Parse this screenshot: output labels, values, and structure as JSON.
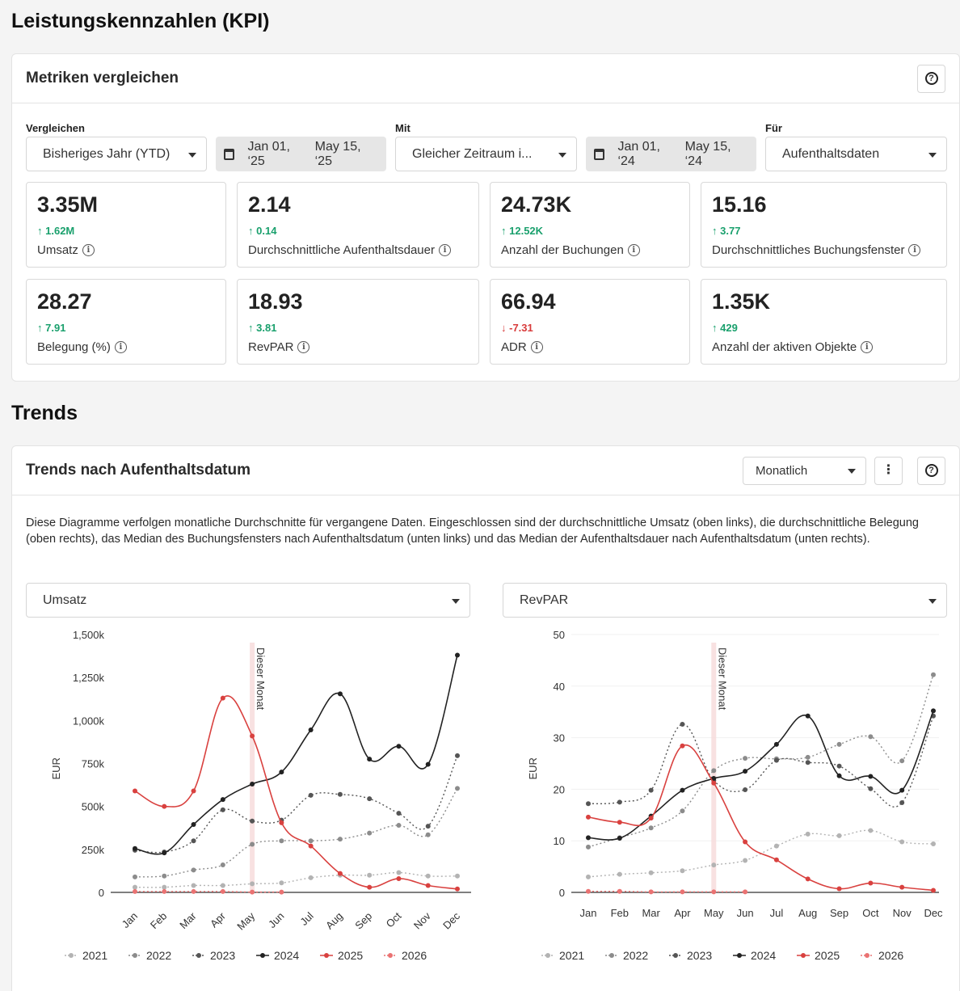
{
  "page_title": "Leistungskennzahlen (KPI)",
  "kpi": {
    "title": "Metriken vergleichen",
    "help_icon": "question-icon",
    "compare_label": "Vergleichen",
    "compare_value": "Bisheriges Jahr (YTD)",
    "compare_range_start": "Jan 01, ‘25",
    "compare_range_end": "May 15, ‘25",
    "with_label": "Mit",
    "with_value": "Gleicher Zeitraum i...",
    "with_range_start": "Jan 01, ‘24",
    "with_range_end": "May 15, ‘24",
    "for_label": "Für",
    "for_value": "Aufenthaltsdaten",
    "metrics": [
      {
        "value": "3.35M",
        "delta": "1.62M",
        "dir": "up",
        "label": "Umsatz"
      },
      {
        "value": "2.14",
        "delta": "0.14",
        "dir": "up",
        "label": "Durchschnittliche Aufenthaltsdauer"
      },
      {
        "value": "24.73K",
        "delta": "12.52K",
        "dir": "up",
        "label": "Anzahl der Buchungen"
      },
      {
        "value": "15.16",
        "delta": "3.77",
        "dir": "up",
        "label": "Durchschnittliches Buchungsfenster"
      },
      {
        "value": "28.27",
        "delta": "7.91",
        "dir": "up",
        "label": "Belegung (%)"
      },
      {
        "value": "18.93",
        "delta": "3.81",
        "dir": "up",
        "label": "RevPAR"
      },
      {
        "value": "66.94",
        "delta": "-7.31",
        "dir": "down",
        "label": "ADR"
      },
      {
        "value": "1.35K",
        "delta": "429",
        "dir": "up",
        "label": "Anzahl der aktiven Objekte"
      }
    ]
  },
  "trends_title": "Trends",
  "trend_card": {
    "title": "Trends nach Aufenthaltsdatum",
    "period_value": "Monatlich",
    "menu_icon": "kebab-menu-icon",
    "help_icon": "question-icon",
    "description": "Diese Diagramme verfolgen monatliche Durchschnitte für vergangene Daten. Eingeschlossen sind der durchschnittliche Umsatz (oben links), die durchschnittliche Belegung (oben rechts), das Median des Buchungsfensters nach Aufenthaltsdatum (unten links) und das Median der Aufenthaltsdauer nach Aufenthaltsdatum (unten rechts).",
    "left_select": "Umsatz",
    "right_select": "RevPAR"
  },
  "colors": {
    "y2021": "#b3b3b3",
    "y2022": "#8c8c8c",
    "y2023": "#555555",
    "y2024": "#222222",
    "y2025": "#d9413f",
    "y2026": "#ea7272",
    "marker": "#f6dada"
  },
  "chart_data": [
    {
      "type": "line",
      "title": "Umsatz",
      "ylabel": "EUR",
      "ylim": [
        0,
        1500000
      ],
      "yticks": [
        "0",
        "250k",
        "500k",
        "750k",
        "1,000k",
        "1,250k",
        "1,500k"
      ],
      "categories": [
        "Jan",
        "Feb",
        "Mar",
        "Apr",
        "May",
        "Jun",
        "Jul",
        "Aug",
        "Sep",
        "Oct",
        "Nov",
        "Dec"
      ],
      "marker_label": "Dieser Monat",
      "marker_index": 4,
      "series": [
        {
          "name": "2021",
          "style": "dotted",
          "values": [
            30000,
            30000,
            40000,
            40000,
            50000,
            55000,
            85000,
            100000,
            100000,
            115000,
            95000,
            95000
          ]
        },
        {
          "name": "2022",
          "style": "dotted",
          "values": [
            90000,
            95000,
            130000,
            160000,
            280000,
            300000,
            300000,
            310000,
            345000,
            390000,
            335000,
            605000
          ]
        },
        {
          "name": "2023",
          "style": "dotted",
          "values": [
            245000,
            235000,
            300000,
            480000,
            415000,
            420000,
            565000,
            570000,
            545000,
            460000,
            385000,
            795000
          ]
        },
        {
          "name": "2024",
          "style": "solid",
          "values": [
            255000,
            230000,
            395000,
            540000,
            630000,
            700000,
            945000,
            1155000,
            775000,
            850000,
            745000,
            1380000
          ]
        },
        {
          "name": "2025",
          "style": "solid",
          "values": [
            590000,
            500000,
            590000,
            1130000,
            910000,
            405000,
            270000,
            110000,
            30000,
            80000,
            40000,
            20000
          ]
        },
        {
          "name": "2026",
          "style": "dotted",
          "values": [
            5000,
            5000,
            5000,
            5000,
            2000,
            2000,
            null,
            null,
            null,
            null,
            null,
            null
          ]
        }
      ]
    },
    {
      "type": "line",
      "title": "RevPAR",
      "ylabel": "EUR",
      "ylim": [
        0,
        50
      ],
      "yticks": [
        "0",
        "10",
        "20",
        "30",
        "40",
        "50"
      ],
      "categories": [
        "Jan",
        "Feb",
        "Mar",
        "Apr",
        "May",
        "Jun",
        "Jul",
        "Aug",
        "Sep",
        "Oct",
        "Nov",
        "Dec"
      ],
      "marker_label": "Dieser Monat",
      "marker_index": 4,
      "series": [
        {
          "name": "2021",
          "style": "dotted",
          "values": [
            3,
            3.5,
            3.8,
            4.2,
            5.3,
            6.2,
            9,
            11.3,
            11,
            12,
            9.8,
            9.4
          ]
        },
        {
          "name": "2022",
          "style": "dotted",
          "values": [
            8.8,
            10.6,
            12.5,
            15.8,
            23.6,
            26,
            25.9,
            26.2,
            28.7,
            30.2,
            25.5,
            42.2
          ]
        },
        {
          "name": "2023",
          "style": "dotted",
          "values": [
            17.2,
            17.5,
            19.8,
            32.6,
            21.7,
            19.9,
            25.6,
            25.2,
            24.5,
            20.1,
            17.4,
            34.2
          ]
        },
        {
          "name": "2024",
          "style": "solid",
          "values": [
            10.6,
            10.5,
            14.8,
            19.8,
            22.1,
            23.5,
            28.7,
            34.2,
            22.6,
            22.5,
            19.8,
            35.2
          ]
        },
        {
          "name": "2025",
          "style": "solid",
          "values": [
            14.6,
            13.6,
            14.4,
            28.4,
            21.2,
            9.8,
            6.3,
            2.6,
            0.7,
            1.8,
            1,
            0.4
          ]
        },
        {
          "name": "2026",
          "style": "dotted",
          "values": [
            0.2,
            0.2,
            0.1,
            0.1,
            0.1,
            0.1,
            null,
            null,
            null,
            null,
            null,
            null
          ]
        }
      ]
    }
  ]
}
